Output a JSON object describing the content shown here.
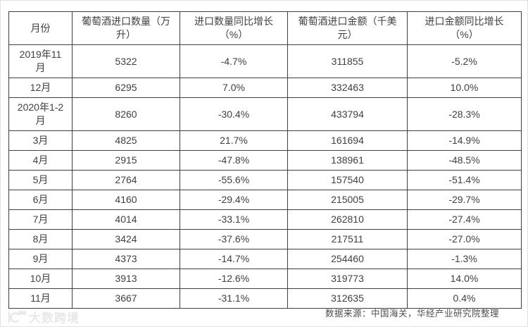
{
  "chart_data": {
    "type": "table",
    "columns": [
      "月份",
      "葡萄酒进口数量（万升）",
      "进口数量同比增长（%）",
      "葡萄酒进口金额（千美元）",
      "进口金额同比增长（%）"
    ],
    "rows": [
      [
        "2019年11月",
        "5322",
        "-4.7%",
        "311855",
        "-5.2%"
      ],
      [
        "12月",
        "6295",
        "7.0%",
        "332463",
        "10.0%"
      ],
      [
        "2020年1-2月",
        "8260",
        "-30.4%",
        "433794",
        "-28.3%"
      ],
      [
        "3月",
        "4825",
        "21.7%",
        "161694",
        "-14.9%"
      ],
      [
        "4月",
        "2915",
        "-47.8%",
        "138961",
        "-48.5%"
      ],
      [
        "5月",
        "2764",
        "-55.6%",
        "157540",
        "-51.4%"
      ],
      [
        "6月",
        "4160",
        "-29.4%",
        "215005",
        "-29.7%"
      ],
      [
        "7月",
        "4014",
        "-33.1%",
        "262810",
        "-27.4%"
      ],
      [
        "8月",
        "3424",
        "-37.6%",
        "217511",
        "-27.0%"
      ],
      [
        "9月",
        "4373",
        "-14.7%",
        "254460",
        "-1.3%"
      ],
      [
        "10月",
        "3913",
        "-12.6%",
        "319773",
        "14.0%"
      ],
      [
        "11月",
        "3667",
        "-31.1%",
        "312635",
        "0.4%"
      ]
    ]
  },
  "footer": {
    "source_text": "数据来源：中国海关，华经产业研究院整理",
    "watermark_text": "大数跨境"
  },
  "colors": {
    "table_border": "#3f3f3f",
    "table_text": "#404040",
    "source_text": "#4d4d4d",
    "watermark": "#e8e8e8",
    "page_border": "#e2e2e2"
  }
}
